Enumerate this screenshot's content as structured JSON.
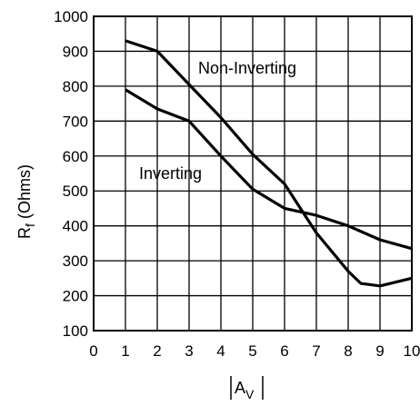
{
  "chart_data": {
    "type": "line",
    "xlabel_main": "A",
    "xlabel_sub": "V",
    "ylabel_main": "R",
    "ylabel_sub": "f",
    "ylabel_rest": " (Ohms)",
    "xlim": [
      0,
      10
    ],
    "ylim": [
      100,
      1000
    ],
    "xticks": [
      "0",
      "1",
      "2",
      "3",
      "4",
      "5",
      "6",
      "7",
      "8",
      "9",
      "10"
    ],
    "yticks": [
      "100",
      "200",
      "300",
      "400",
      "500",
      "600",
      "700",
      "800",
      "900",
      "1000"
    ],
    "grid": true,
    "series": [
      {
        "name": "Non-Inverting",
        "x": [
          1,
          2,
          3,
          4,
          5,
          6,
          7,
          8,
          8.4,
          9,
          10
        ],
        "y": [
          930,
          900,
          805,
          710,
          605,
          520,
          380,
          270,
          235,
          228,
          250
        ]
      },
      {
        "name": "Inverting",
        "x": [
          1,
          2,
          3,
          4,
          5,
          6,
          7,
          8,
          9,
          10
        ],
        "y": [
          790,
          735,
          700,
          600,
          505,
          450,
          430,
          400,
          360,
          335
        ]
      }
    ]
  }
}
